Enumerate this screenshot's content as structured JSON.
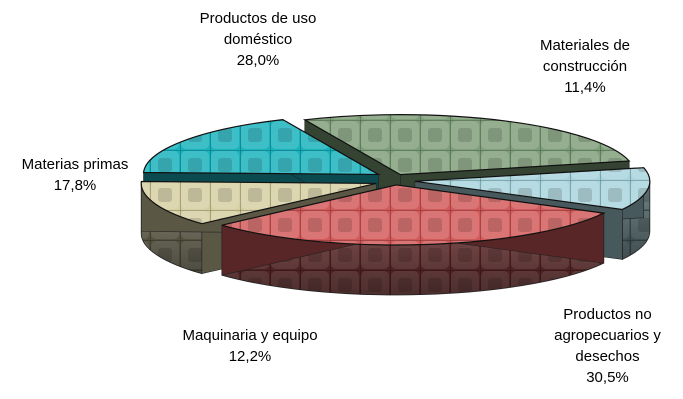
{
  "chart_data": {
    "type": "pie",
    "style": "3d-exploded",
    "slices": [
      {
        "label_lines": [
          "Productos de uso",
          "doméstico"
        ],
        "value": 28.0,
        "value_label": "28,0%",
        "color": "#7f9f7a"
      },
      {
        "label_lines": [
          "Materiales de",
          "construcción"
        ],
        "value": 11.4,
        "value_label": "11,4%",
        "color": "#a8d4dc"
      },
      {
        "label_lines": [
          "Productos no",
          "agropecuarios y",
          "desechos"
        ],
        "value": 30.5,
        "value_label": "30,5%",
        "color": "#d25a5a"
      },
      {
        "label_lines": [
          "Maquinaria y equipo"
        ],
        "value": 12.2,
        "value_label": "12,2%",
        "color": "#d6cfa2"
      },
      {
        "label_lines": [
          "Materias primas"
        ],
        "value": 17.8,
        "value_label": "17,8%",
        "color": "#19b3be"
      }
    ]
  }
}
